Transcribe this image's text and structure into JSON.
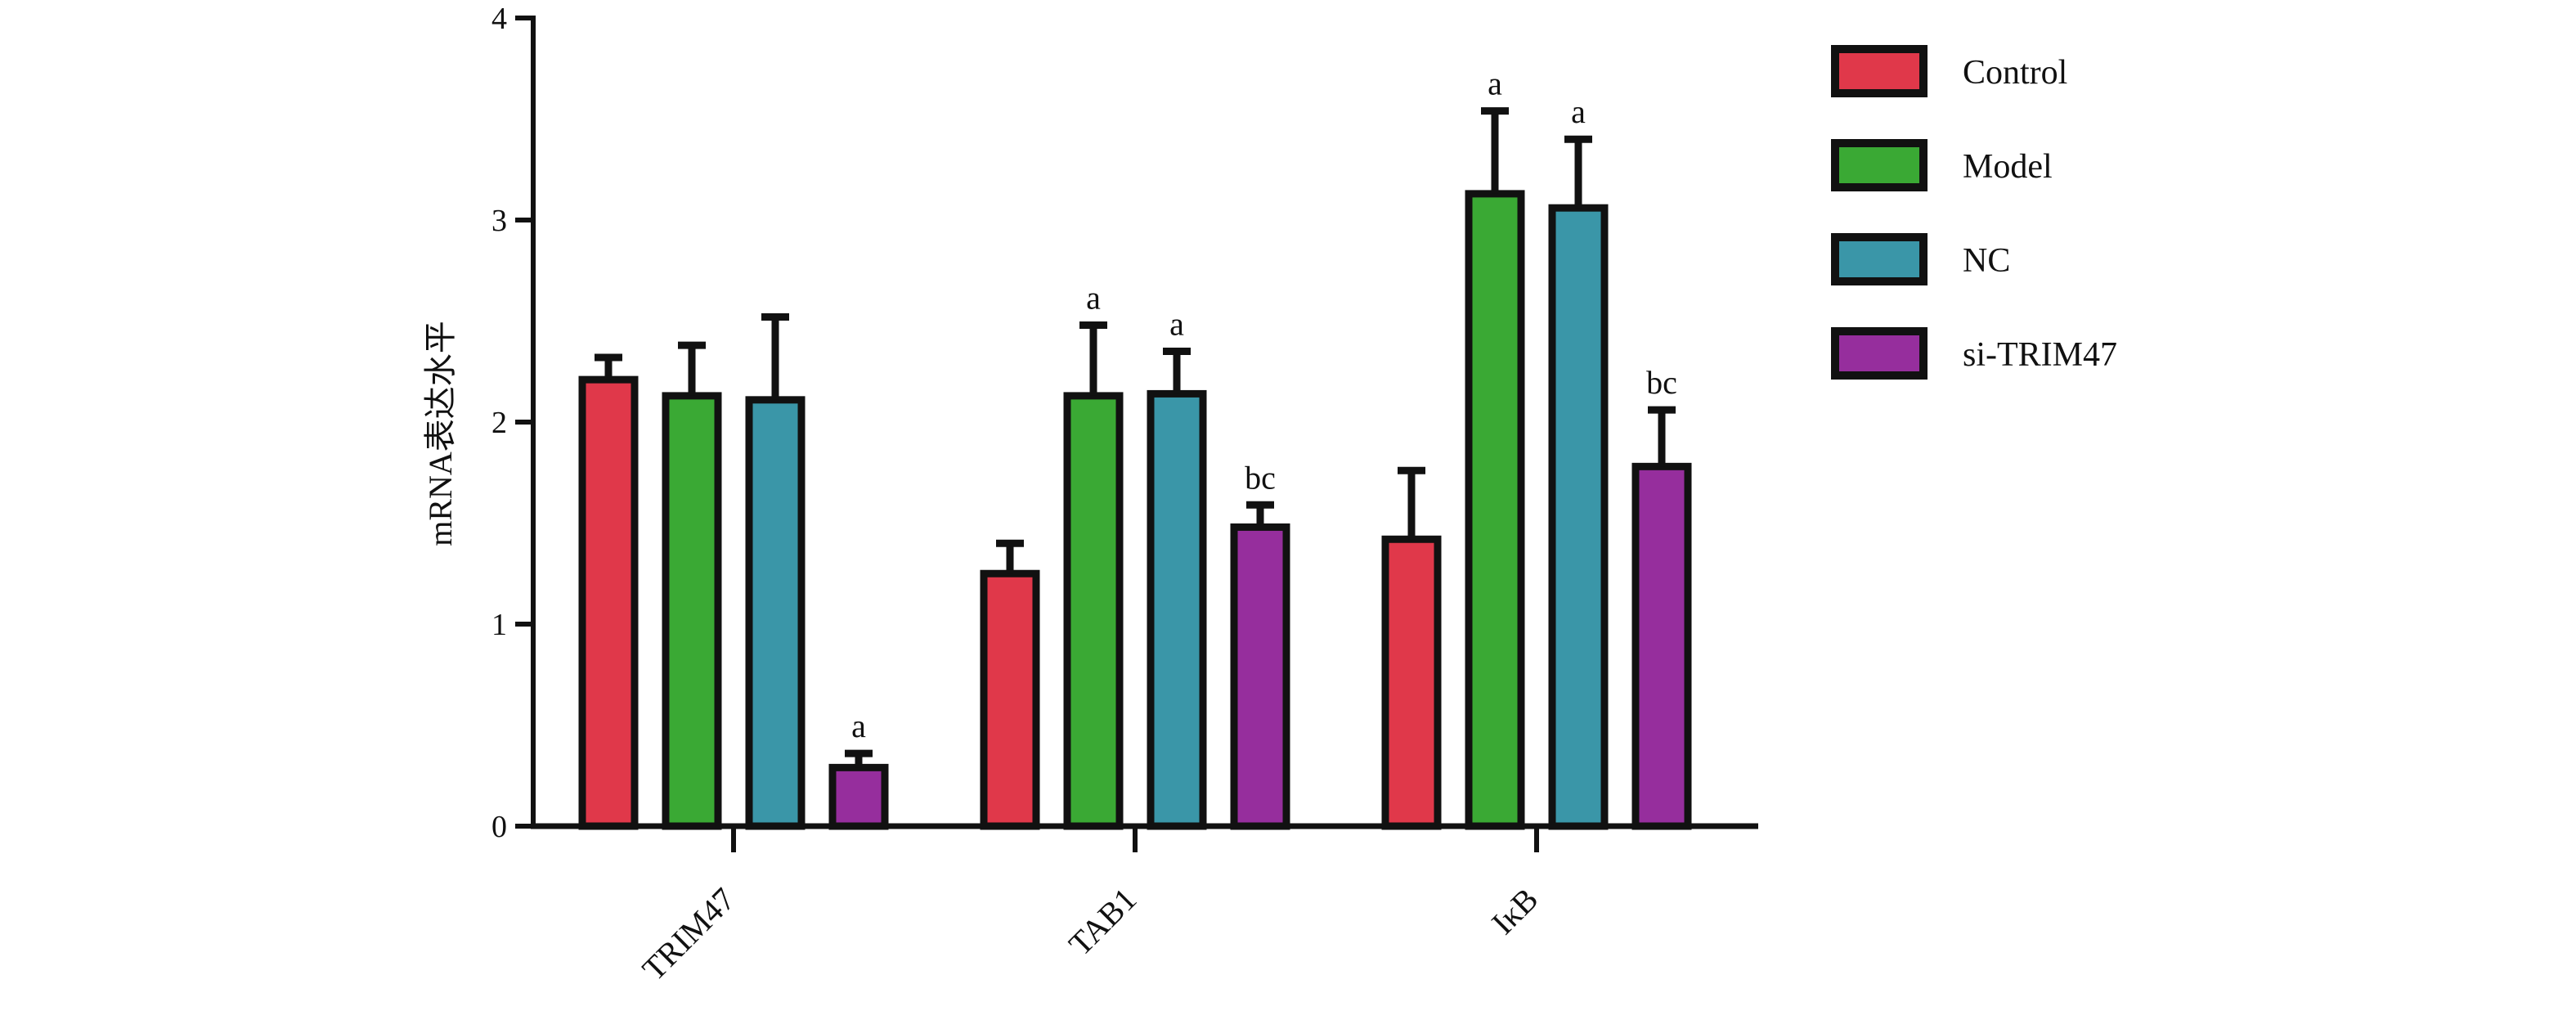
{
  "chart_data": {
    "type": "bar",
    "ylabel": "mRNA表达水平",
    "xlabel": "",
    "ylim": [
      0,
      4
    ],
    "yticks": [
      "0",
      "1",
      "2",
      "3",
      "4"
    ],
    "categories": [
      "TRIM47",
      "TAB1",
      "IκB"
    ],
    "legend_position": "right",
    "series": [
      {
        "name": "Control",
        "color": "#e0384a",
        "values": [
          2.21,
          1.25,
          1.42
        ],
        "errors": [
          0.11,
          0.15,
          0.34
        ],
        "sig": [
          "",
          "",
          ""
        ]
      },
      {
        "name": "Model",
        "color": "#3aa934",
        "values": [
          2.13,
          2.13,
          3.13
        ],
        "errors": [
          0.25,
          0.35,
          0.41
        ],
        "sig": [
          "",
          "a",
          "a"
        ]
      },
      {
        "name": "NC",
        "color": "#3a96a8",
        "values": [
          2.11,
          2.14,
          3.06
        ],
        "errors": [
          0.41,
          0.21,
          0.34
        ],
        "sig": [
          "",
          "a",
          "a"
        ]
      },
      {
        "name": "si-TRIM47",
        "color": "#962e9d",
        "values": [
          0.29,
          1.48,
          1.78
        ],
        "errors": [
          0.07,
          0.11,
          0.28
        ],
        "sig": [
          "a",
          "bc",
          "bc"
        ]
      }
    ]
  }
}
